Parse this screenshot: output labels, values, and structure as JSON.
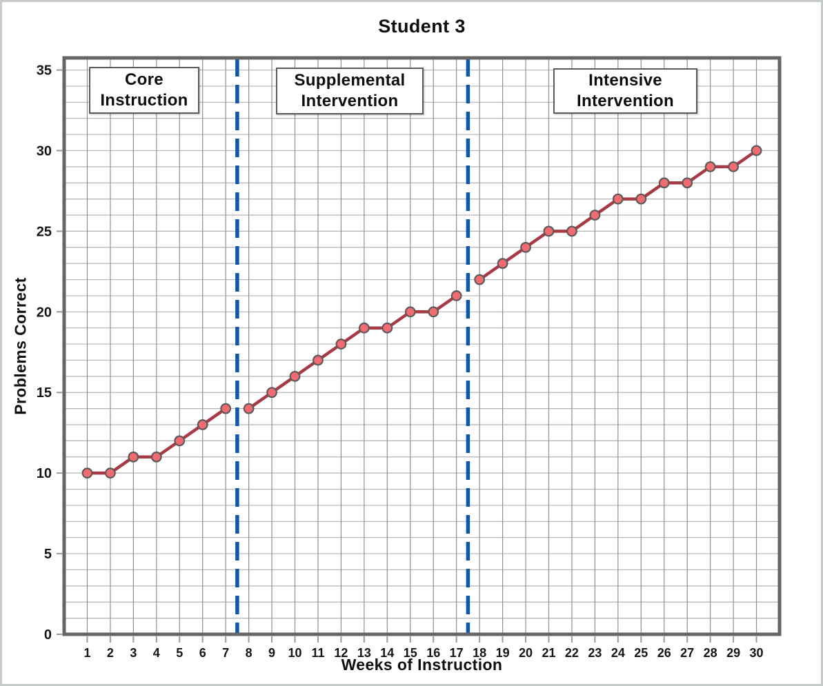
{
  "title": "Student 3",
  "chart_data": {
    "type": "line",
    "title": "Student 3",
    "xlabel": "Weeks of Instruction",
    "ylabel": "Problems Correct",
    "xlim": [
      0,
      31
    ],
    "ylim": [
      0,
      35.75
    ],
    "grid": true,
    "x_ticks": [
      1,
      2,
      3,
      4,
      5,
      6,
      7,
      8,
      9,
      10,
      11,
      12,
      13,
      14,
      15,
      16,
      17,
      18,
      19,
      20,
      21,
      22,
      23,
      24,
      25,
      26,
      27,
      28,
      29,
      30
    ],
    "y_ticks": [
      0,
      5,
      10,
      15,
      20,
      25,
      30,
      35
    ],
    "phase_boundaries": [
      7.5,
      17.5
    ],
    "phases": [
      {
        "label": "Core Instruction",
        "label_lines": [
          "Core",
          "Instruction"
        ],
        "weeks": [
          1,
          2,
          3,
          4,
          5,
          6,
          7
        ],
        "values": [
          10,
          10,
          11,
          11,
          12,
          13,
          14
        ]
      },
      {
        "label": "Supplemental Intervention",
        "label_lines": [
          "Supplemental",
          "Intervention"
        ],
        "weeks": [
          8,
          9,
          10,
          11,
          12,
          13,
          14,
          15,
          16,
          17
        ],
        "values": [
          14,
          15,
          16,
          17,
          18,
          19,
          19,
          20,
          20,
          21
        ]
      },
      {
        "label": "Intensive Intervention",
        "label_lines": [
          "Intensive",
          "Intervention"
        ],
        "weeks": [
          18,
          19,
          20,
          21,
          22,
          23,
          24,
          25,
          26,
          27,
          28,
          29,
          30
        ],
        "values": [
          22,
          23,
          24,
          25,
          25,
          26,
          27,
          27,
          28,
          28,
          29,
          29,
          30
        ]
      }
    ],
    "colors": {
      "line": "#a63a45",
      "marker_fill": "#f26b70",
      "marker_stroke": "#5a5a5a",
      "boundary": "#1058a7",
      "grid_vertical": "#8f8f8f",
      "grid_horizontal": "#b3b3b3",
      "axis_border": "#666666",
      "tick": "#9a9a9a",
      "text": "#141414"
    }
  }
}
